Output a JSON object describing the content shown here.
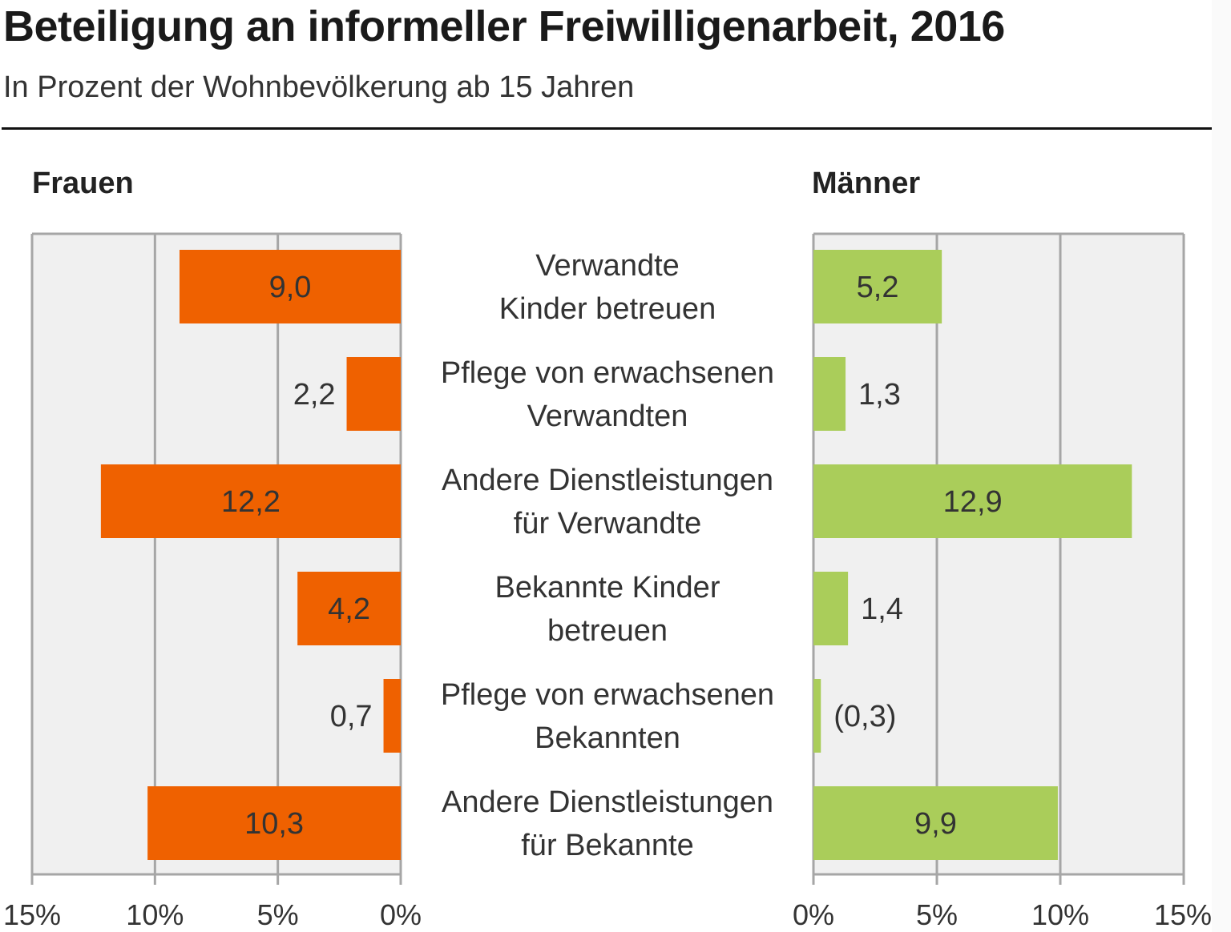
{
  "title": "Beteiligung an informeller Freiwilligenarbeit, 2016",
  "subtitle": "In Prozent der Wohnbevölkerung ab 15 Jahren",
  "colors": {
    "frauen": "#ef6100",
    "maenner": "#aacd5a",
    "plot_bg": "#f0f0f0",
    "grid": "#a6a6a6"
  },
  "chart_data": {
    "type": "bar",
    "orientation": "horizontal",
    "layout": "back-to-back",
    "title": "Beteiligung an informeller Freiwilligenarbeit, 2016",
    "subtitle": "In Prozent der Wohnbevölkerung ab 15 Jahren",
    "categories": [
      [
        "Verwandte",
        "Kinder betreuen"
      ],
      [
        "Pflege von erwachsenen",
        "Verwandten"
      ],
      [
        "Andere Dienstleistungen",
        "für Verwandte"
      ],
      [
        "Bekannte Kinder",
        "betreuen"
      ],
      [
        "Pflege von erwachsenen",
        "Bekannten"
      ],
      [
        "Andere Dienstleistungen",
        "für Bekannte"
      ]
    ],
    "series": [
      {
        "name": "Frauen",
        "values": [
          9.0,
          2.2,
          12.2,
          4.2,
          0.7,
          10.3
        ],
        "labels": [
          "9,0",
          "2,2",
          "12,2",
          "4,2",
          "0,7",
          "10,3"
        ],
        "direction": "left"
      },
      {
        "name": "Männer",
        "values": [
          5.2,
          1.3,
          12.9,
          1.4,
          0.3,
          9.9
        ],
        "labels": [
          "5,2",
          "1,3",
          "12,9",
          "1,4",
          "(0,3)",
          "9,9"
        ],
        "direction": "right"
      }
    ],
    "xlim": [
      0,
      15
    ],
    "xticks": [
      0,
      5,
      10,
      15
    ],
    "xtick_labels_left": [
      "15%",
      "10%",
      "5%",
      "0%"
    ],
    "xtick_labels_right": [
      "0%",
      "5%",
      "10%",
      "15%"
    ],
    "grid": true,
    "xlabel": "",
    "ylabel": ""
  }
}
